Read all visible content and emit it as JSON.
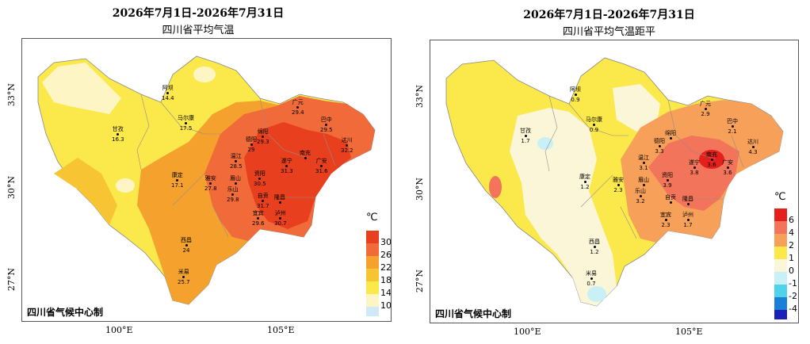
{
  "left": {
    "title": "2026年7月1日-2026年7月31日",
    "subtitle": "四川省平均气温",
    "credit": "四川省气候中心制",
    "legend_unit": "℃",
    "legend": [
      {
        "label": "30",
        "color": "#e8401e"
      },
      {
        "label": "26",
        "color": "#f16a3a"
      },
      {
        "label": "22",
        "color": "#f4a22d"
      },
      {
        "label": "18",
        "color": "#f7c534"
      },
      {
        "label": "14",
        "color": "#fbe84a"
      },
      {
        "label": "10",
        "color": "#fdf6c4"
      },
      {
        "label": "",
        "color": "#cfe9f6"
      }
    ],
    "cities": [
      {
        "name": "阿坝",
        "value": "14.4"
      },
      {
        "name": "甘孜",
        "value": "16.3"
      },
      {
        "name": "马尔康",
        "value": "17.5"
      },
      {
        "name": "广元",
        "value": "29.4"
      },
      {
        "name": "巴中",
        "value": "29.5"
      },
      {
        "name": "绵阳",
        "value": "29.3"
      },
      {
        "name": "德阳",
        "value": "29"
      },
      {
        "name": "达川",
        "value": "32.2"
      },
      {
        "name": "温江",
        "value": "28.5"
      },
      {
        "name": "遂宁",
        "value": "31.3"
      },
      {
        "name": "南充",
        "value": ""
      },
      {
        "name": "康定",
        "value": "17.1"
      },
      {
        "name": "雅安",
        "value": "27.8"
      },
      {
        "name": "眉山",
        "value": ""
      },
      {
        "name": "资阳",
        "value": "30.5"
      },
      {
        "name": "广安",
        "value": "31.6"
      },
      {
        "name": "乐山",
        "value": "29.8"
      },
      {
        "name": "自贡",
        "value": "31.7"
      },
      {
        "name": "隆昌",
        "value": ""
      },
      {
        "name": "宜宾",
        "value": "29.6"
      },
      {
        "name": "泸州",
        "value": "30.7"
      },
      {
        "name": "西昌",
        "value": "24"
      },
      {
        "name": "米易",
        "value": "25.7"
      }
    ]
  },
  "right": {
    "title": "2026年7月1日-2026年7月31日",
    "subtitle": "四川省平均气温距平",
    "credit": "四川省气候中心制",
    "legend_unit": "℃",
    "legend": [
      {
        "label": "6",
        "color": "#e3201b"
      },
      {
        "label": "4",
        "color": "#f2745a"
      },
      {
        "label": "2",
        "color": "#f7a05a"
      },
      {
        "label": "1",
        "color": "#fbe84a"
      },
      {
        "label": "0",
        "color": "#fbf6d8"
      },
      {
        "label": "-1",
        "color": "#c9f0f7"
      },
      {
        "label": "-2",
        "color": "#4fd3ea"
      },
      {
        "label": "-4",
        "color": "#1a7fd6"
      },
      {
        "label": "",
        "color": "#1b20b8"
      }
    ],
    "cities": [
      {
        "name": "阿坝",
        "value": "0.9"
      },
      {
        "name": "甘孜",
        "value": "1.7"
      },
      {
        "name": "马尔康",
        "value": "0.9"
      },
      {
        "name": "广元",
        "value": "2.9"
      },
      {
        "name": "巴中",
        "value": "2.1"
      },
      {
        "name": "绵阳",
        "value": ""
      },
      {
        "name": "德阳",
        "value": "3.3"
      },
      {
        "name": "达川",
        "value": "4.3"
      },
      {
        "name": "温江",
        "value": "3.1"
      },
      {
        "name": "遂宁",
        "value": "3.8"
      },
      {
        "name": "南充",
        "value": "3.6"
      },
      {
        "name": "康定",
        "value": "1.2"
      },
      {
        "name": "雅安",
        "value": "2.3"
      },
      {
        "name": "眉山",
        "value": ""
      },
      {
        "name": "资阳",
        "value": "3.9"
      },
      {
        "name": "广安",
        "value": "3.6"
      },
      {
        "name": "乐山",
        "value": "3.2"
      },
      {
        "name": "自贡",
        "value": ""
      },
      {
        "name": "隆昌",
        "value": ""
      },
      {
        "name": "宜宾",
        "value": "2.3"
      },
      {
        "name": "泸州",
        "value": "1.7"
      },
      {
        "name": "西昌",
        "value": "1.2"
      },
      {
        "name": "米易",
        "value": "0.7"
      }
    ]
  },
  "axes": {
    "lat_ticks": [
      "33°N",
      "30°N",
      "27°N"
    ],
    "lon_ticks": [
      "100°E",
      "105°E"
    ]
  }
}
